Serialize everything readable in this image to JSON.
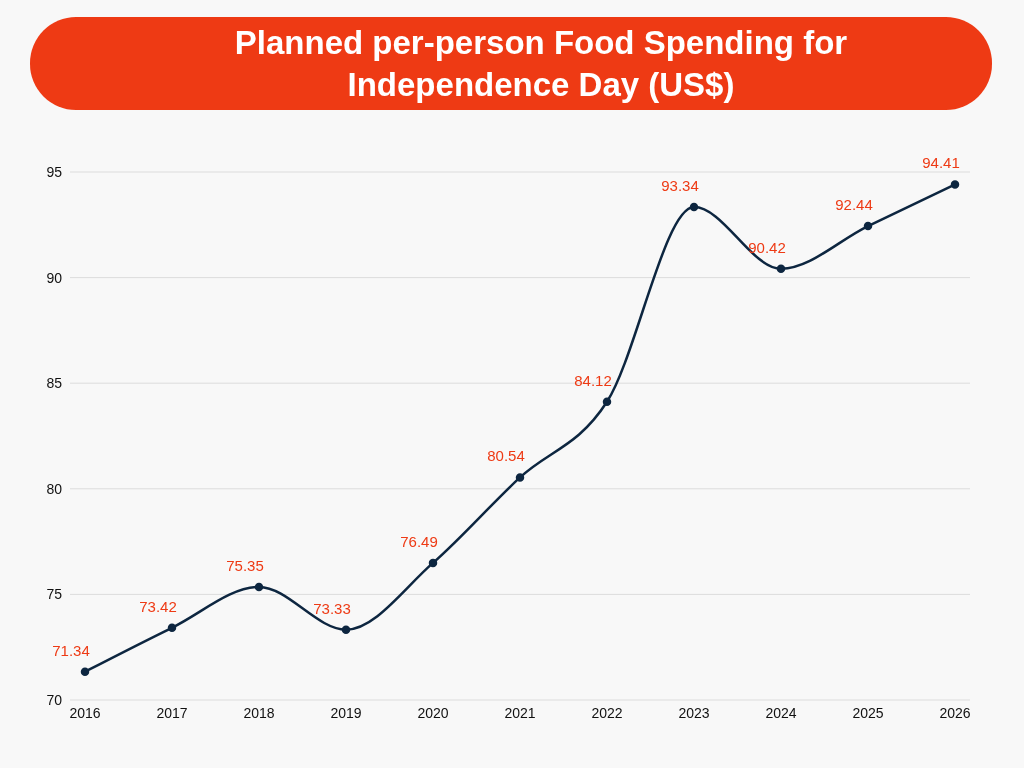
{
  "chart_data": {
    "type": "line",
    "title": "Planned per-person Food Spending for Independence Day (US$)",
    "categories": [
      "2016",
      "2017",
      "2018",
      "2019",
      "2020",
      "2021",
      "2022",
      "2023",
      "2024",
      "2025",
      "2026"
    ],
    "values": [
      71.34,
      73.42,
      75.35,
      73.33,
      76.49,
      80.54,
      84.12,
      93.34,
      90.42,
      92.44,
      94.41
    ],
    "color": "#0d2640",
    "ylim": [
      70,
      95
    ],
    "yticks": [
      70,
      75,
      80,
      85,
      90,
      95
    ],
    "grid": "y",
    "marker": "circle",
    "data_labels": true
  }
}
